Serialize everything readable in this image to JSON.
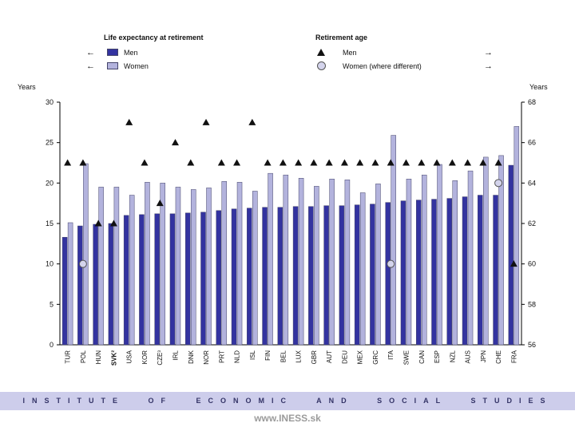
{
  "watermark": "www.INESS.sk",
  "banner": {
    "text": "INSTITUTE OF ECONOMIC AND SOCIAL STUDIES"
  },
  "axes": {
    "left_label": "Years",
    "right_label": "Years",
    "left_ticks": [
      0,
      5,
      10,
      15,
      20,
      25,
      30
    ],
    "right_ticks": [
      56,
      58,
      60,
      62,
      64,
      66,
      68
    ]
  },
  "legend": {
    "left_title": "Life expectancy at retirement",
    "left_arrow": "←",
    "right_arrow": "→",
    "left_items": [
      {
        "label": "Men"
      },
      {
        "label": "Women"
      }
    ],
    "right_title": "Retirement age",
    "right_items": [
      {
        "label": "Men"
      },
      {
        "label": "Women (where different)"
      }
    ]
  },
  "colors": {
    "men_bar": "#3333a0",
    "women_bar": "#b3b3dd",
    "bar_stroke": "#44446a",
    "marker": "#111111",
    "circle_fill": "#d4d4ec",
    "circle_stroke": "#555555",
    "axis": "#000000"
  },
  "chart_data": {
    "type": "bar",
    "title": "",
    "categories": [
      "TUR",
      "POL",
      "HUN",
      "SVK²",
      "USA",
      "KOR",
      "CZE³",
      "IRL",
      "DNK",
      "NOR",
      "PRT",
      "NLD",
      "ISL",
      "FIN",
      "BEL",
      "LUX",
      "GBR",
      "AUT",
      "DEU",
      "MEX",
      "GRC",
      "ITA",
      "SWE",
      "CAN",
      "ESP",
      "NZL",
      "AUS",
      "JPN",
      "CHE",
      "FRA"
    ],
    "left_axis": {
      "label": "Years",
      "range": [
        0,
        30
      ]
    },
    "right_axis": {
      "label": "Years",
      "range": [
        56,
        68
      ]
    },
    "legend_position": "top",
    "grid": false,
    "series": [
      {
        "name": "Life expectancy at retirement - Men",
        "axis": "left",
        "type": "bar",
        "values": [
          13.3,
          14.7,
          14.9,
          15.0,
          16.0,
          16.1,
          16.2,
          16.2,
          16.3,
          16.4,
          16.6,
          16.8,
          16.9,
          17.0,
          17.0,
          17.1,
          17.1,
          17.2,
          17.2,
          17.3,
          17.4,
          17.6,
          17.8,
          17.9,
          18.0,
          18.1,
          18.3,
          18.5,
          18.5,
          22.2
        ]
      },
      {
        "name": "Life expectancy at retirement - Women",
        "axis": "left",
        "type": "bar",
        "values": [
          15.1,
          22.4,
          19.5,
          19.5,
          18.5,
          20.1,
          20.0,
          19.5,
          19.2,
          19.4,
          20.2,
          20.1,
          19.0,
          21.2,
          21.0,
          20.6,
          19.6,
          20.5,
          20.4,
          18.8,
          19.9,
          25.9,
          20.5,
          21.0,
          22.3,
          20.3,
          21.5,
          23.2,
          23.4,
          27.0
        ]
      },
      {
        "name": "Retirement age - Men",
        "axis": "right",
        "type": "scatter",
        "marker": "triangle",
        "values": [
          65,
          65,
          62,
          62,
          67,
          65,
          63,
          66,
          65,
          67,
          65,
          65,
          67,
          65,
          65,
          65,
          65,
          65,
          65,
          65,
          65,
          65,
          65,
          65,
          65,
          65,
          65,
          65,
          65,
          60
        ]
      },
      {
        "name": "Retirement age - Women (where different)",
        "axis": "right",
        "type": "scatter",
        "marker": "circle",
        "values": [
          null,
          60,
          null,
          null,
          null,
          null,
          null,
          null,
          null,
          null,
          null,
          null,
          null,
          null,
          null,
          null,
          null,
          null,
          null,
          null,
          null,
          60,
          null,
          null,
          null,
          null,
          null,
          null,
          64,
          null
        ]
      }
    ]
  }
}
